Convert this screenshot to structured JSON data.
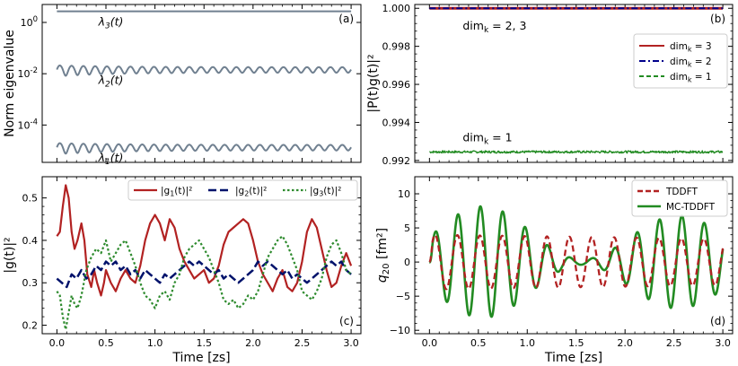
{
  "figure": {
    "xlabel": "Time [zs]"
  },
  "chart_data": [
    {
      "id": "a",
      "type": "line",
      "panel_label": "(a)",
      "ylabel": "Norm eigenvalue",
      "yscale": "log",
      "xlim": [
        -0.15,
        3.1
      ],
      "ylim": [
        3.5e-06,
        5
      ],
      "xticks": [
        0.0,
        0.5,
        1.0,
        1.5,
        2.0,
        2.5,
        3.0
      ],
      "xtick_labels": [
        "",
        "",
        "",
        "",
        "",
        "",
        ""
      ],
      "yticks": [
        1,
        0.01,
        0.0001
      ],
      "ytick_labels": [
        "10^0",
        "10^-2",
        "10^-4"
      ],
      "series": [
        {
          "name": "lambda3",
          "label": "λ3(t)",
          "color": "#708090",
          "base": 2.7,
          "amp": 0,
          "decay": 0,
          "period": 0.12
        },
        {
          "name": "lambda2",
          "label": "λ2(t)",
          "color": "#708090",
          "base": 0.0145,
          "amp": 0.0035,
          "decay": 0.2,
          "period": 0.12
        },
        {
          "name": "lambda1",
          "label": "λ1(t)",
          "color": "#708090",
          "base": 1.35e-05,
          "amp": 3.3e-06,
          "decay": 0.2,
          "period": 0.12
        }
      ]
    },
    {
      "id": "b",
      "type": "line",
      "panel_label": "(b)",
      "ylabel": "|P(t)g(t)|²",
      "xlim": [
        -0.15,
        3.1
      ],
      "ylim": [
        0.9919,
        1.0002
      ],
      "xticks": [
        0.0,
        0.5,
        1.0,
        1.5,
        2.0,
        2.5,
        3.0
      ],
      "xtick_labels": [
        "",
        "",
        "",
        "",
        "",
        "",
        ""
      ],
      "yticks": [
        0.992,
        0.994,
        0.996,
        0.998,
        1.0
      ],
      "ytick_labels": [
        "0.992",
        "0.994",
        "0.996",
        "0.998",
        "1.000"
      ],
      "annotations": [
        "dimk = 2, 3",
        "dimk = 1"
      ],
      "legend": [
        "dimk = 3",
        "dimk = 2",
        "dimk = 1"
      ],
      "series": [
        {
          "name": "dimk = 3",
          "color": "#b22222",
          "value": 1.0
        },
        {
          "name": "dimk = 2",
          "color": "#00008b",
          "value": 1.0
        },
        {
          "name": "dimk = 1",
          "color": "#228b22",
          "value": 0.99245,
          "noise": 6e-05
        }
      ]
    },
    {
      "id": "c",
      "type": "line",
      "panel_label": "(c)",
      "ylabel": "|g(t)|²",
      "xlim": [
        -0.15,
        3.1
      ],
      "ylim": [
        0.18,
        0.55
      ],
      "xticks": [
        0.0,
        0.5,
        1.0,
        1.5,
        2.0,
        2.5,
        3.0
      ],
      "xtick_labels": [
        "0.0",
        "0.5",
        "1.0",
        "1.5",
        "2.0",
        "2.5",
        "3.0"
      ],
      "yticks": [
        0.2,
        0.3,
        0.4,
        0.5
      ],
      "ytick_labels": [
        "0.2",
        "0.3",
        "0.4",
        "0.5"
      ],
      "legend": [
        "|g1(t)|²",
        "|g2(t)|²",
        "|g3(t)|²"
      ],
      "series": [
        {
          "name": "|g1(t)|²",
          "color": "#b22222",
          "x": [
            0.0,
            0.03,
            0.06,
            0.09,
            0.12,
            0.15,
            0.18,
            0.21,
            0.25,
            0.28,
            0.31,
            0.35,
            0.38,
            0.41,
            0.45,
            0.48,
            0.5,
            0.55,
            0.6,
            0.65,
            0.7,
            0.75,
            0.8,
            0.85,
            0.9,
            0.95,
            1.0,
            1.05,
            1.1,
            1.15,
            1.2,
            1.25,
            1.3,
            1.35,
            1.4,
            1.45,
            1.5,
            1.55,
            1.6,
            1.65,
            1.7,
            1.75,
            1.8,
            1.85,
            1.9,
            1.95,
            2.0,
            2.05,
            2.1,
            2.15,
            2.2,
            2.25,
            2.3,
            2.35,
            2.4,
            2.45,
            2.5,
            2.55,
            2.6,
            2.65,
            2.7,
            2.75,
            2.8,
            2.85,
            2.9,
            2.95,
            3.0
          ],
          "y": [
            0.41,
            0.42,
            0.48,
            0.53,
            0.5,
            0.42,
            0.38,
            0.4,
            0.44,
            0.4,
            0.32,
            0.29,
            0.33,
            0.3,
            0.27,
            0.3,
            0.33,
            0.3,
            0.28,
            0.31,
            0.33,
            0.31,
            0.3,
            0.34,
            0.4,
            0.44,
            0.46,
            0.44,
            0.4,
            0.45,
            0.43,
            0.38,
            0.35,
            0.33,
            0.31,
            0.32,
            0.33,
            0.3,
            0.31,
            0.34,
            0.39,
            0.42,
            0.43,
            0.44,
            0.45,
            0.44,
            0.4,
            0.35,
            0.32,
            0.3,
            0.28,
            0.31,
            0.33,
            0.29,
            0.28,
            0.3,
            0.35,
            0.42,
            0.45,
            0.43,
            0.38,
            0.33,
            0.29,
            0.3,
            0.34,
            0.37,
            0.34
          ]
        },
        {
          "name": "|g2(t)|²",
          "color": "#00126b",
          "x": [
            0.0,
            0.05,
            0.1,
            0.15,
            0.2,
            0.25,
            0.3,
            0.35,
            0.4,
            0.45,
            0.5,
            0.55,
            0.6,
            0.65,
            0.7,
            0.75,
            0.8,
            0.85,
            0.9,
            0.95,
            1.0,
            1.05,
            1.1,
            1.15,
            1.2,
            1.25,
            1.3,
            1.35,
            1.4,
            1.45,
            1.5,
            1.55,
            1.6,
            1.65,
            1.7,
            1.75,
            1.8,
            1.85,
            1.9,
            1.95,
            2.0,
            2.05,
            2.1,
            2.15,
            2.2,
            2.25,
            2.3,
            2.35,
            2.4,
            2.45,
            2.5,
            2.55,
            2.6,
            2.65,
            2.7,
            2.75,
            2.8,
            2.85,
            2.9,
            2.95,
            3.0
          ],
          "y": [
            0.31,
            0.3,
            0.29,
            0.32,
            0.31,
            0.33,
            0.31,
            0.32,
            0.34,
            0.33,
            0.35,
            0.34,
            0.35,
            0.33,
            0.34,
            0.32,
            0.33,
            0.31,
            0.33,
            0.32,
            0.31,
            0.3,
            0.32,
            0.31,
            0.32,
            0.33,
            0.34,
            0.35,
            0.34,
            0.35,
            0.34,
            0.33,
            0.32,
            0.33,
            0.31,
            0.32,
            0.31,
            0.3,
            0.31,
            0.32,
            0.33,
            0.35,
            0.34,
            0.35,
            0.34,
            0.33,
            0.32,
            0.33,
            0.31,
            0.32,
            0.31,
            0.3,
            0.31,
            0.32,
            0.33,
            0.34,
            0.35,
            0.34,
            0.35,
            0.33,
            0.32
          ]
        },
        {
          "name": "|g3(t)|²",
          "color": "#2e8b2e",
          "x": [
            0.0,
            0.03,
            0.06,
            0.09,
            0.12,
            0.15,
            0.18,
            0.21,
            0.25,
            0.3,
            0.35,
            0.4,
            0.45,
            0.5,
            0.55,
            0.6,
            0.65,
            0.7,
            0.75,
            0.8,
            0.85,
            0.9,
            0.95,
            1.0,
            1.05,
            1.1,
            1.15,
            1.2,
            1.25,
            1.3,
            1.35,
            1.4,
            1.45,
            1.5,
            1.55,
            1.6,
            1.65,
            1.7,
            1.75,
            1.8,
            1.85,
            1.9,
            1.95,
            2.0,
            2.05,
            2.1,
            2.15,
            2.2,
            2.25,
            2.3,
            2.35,
            2.4,
            2.45,
            2.5,
            2.55,
            2.6,
            2.65,
            2.7,
            2.75,
            2.8,
            2.85,
            2.9,
            2.95,
            3.0
          ],
          "y": [
            0.28,
            0.27,
            0.22,
            0.19,
            0.23,
            0.27,
            0.25,
            0.24,
            0.27,
            0.33,
            0.36,
            0.38,
            0.37,
            0.4,
            0.35,
            0.37,
            0.39,
            0.4,
            0.37,
            0.34,
            0.3,
            0.27,
            0.26,
            0.24,
            0.27,
            0.28,
            0.26,
            0.3,
            0.32,
            0.36,
            0.38,
            0.39,
            0.4,
            0.38,
            0.36,
            0.33,
            0.3,
            0.26,
            0.25,
            0.26,
            0.24,
            0.25,
            0.27,
            0.26,
            0.28,
            0.32,
            0.36,
            0.38,
            0.4,
            0.41,
            0.39,
            0.36,
            0.33,
            0.28,
            0.27,
            0.26,
            0.28,
            0.31,
            0.36,
            0.39,
            0.4,
            0.37,
            0.33,
            0.32
          ]
        }
      ]
    },
    {
      "id": "d",
      "type": "line",
      "panel_label": "(d)",
      "ylabel": "q20 [fm²]",
      "xlim": [
        -0.15,
        3.1
      ],
      "ylim": [
        -10.5,
        12.5
      ],
      "xticks": [
        0.0,
        0.5,
        1.0,
        1.5,
        2.0,
        2.5,
        3.0
      ],
      "xtick_labels": [
        "0.0",
        "0.5",
        "1.0",
        "1.5",
        "2.0",
        "2.5",
        "3.0"
      ],
      "yticks": [
        -10,
        -5,
        0,
        5,
        10
      ],
      "ytick_labels": [
        "−10",
        "−5",
        "0",
        "5",
        "10"
      ],
      "legend": [
        "TDDFT",
        "MC-TDDFT"
      ],
      "series": [
        {
          "name": "TDDFT",
          "color": "#b22222",
          "amp": 4.0,
          "period": 0.229
        },
        {
          "name": "MC-TDDFT",
          "color": "#228b22",
          "amp": 4.5,
          "period": 0.229
        }
      ]
    }
  ]
}
